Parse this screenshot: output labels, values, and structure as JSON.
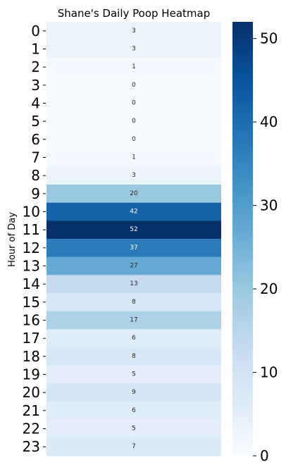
{
  "chart_data": {
    "type": "heatmap",
    "title": "Shane's Daily Poop Heatmap",
    "ylabel": "Hour of Day",
    "xlabel": "",
    "categories": [
      "0",
      "1",
      "2",
      "3",
      "4",
      "5",
      "6",
      "7",
      "8",
      "9",
      "10",
      "11",
      "12",
      "13",
      "14",
      "15",
      "16",
      "17",
      "18",
      "19",
      "20",
      "21",
      "22",
      "23"
    ],
    "values": [
      3,
      3,
      1,
      0,
      0,
      0,
      0,
      1,
      3,
      20,
      42,
      52,
      37,
      27,
      13,
      8,
      17,
      6,
      8,
      5,
      9,
      6,
      5,
      7
    ],
    "colorbar": {
      "min": 0,
      "max": 52,
      "ticks": [
        0,
        10,
        20,
        30,
        40,
        50
      ],
      "colormap": "Blues"
    },
    "annotations": true,
    "grid": false,
    "legend": "colorbar right"
  }
}
